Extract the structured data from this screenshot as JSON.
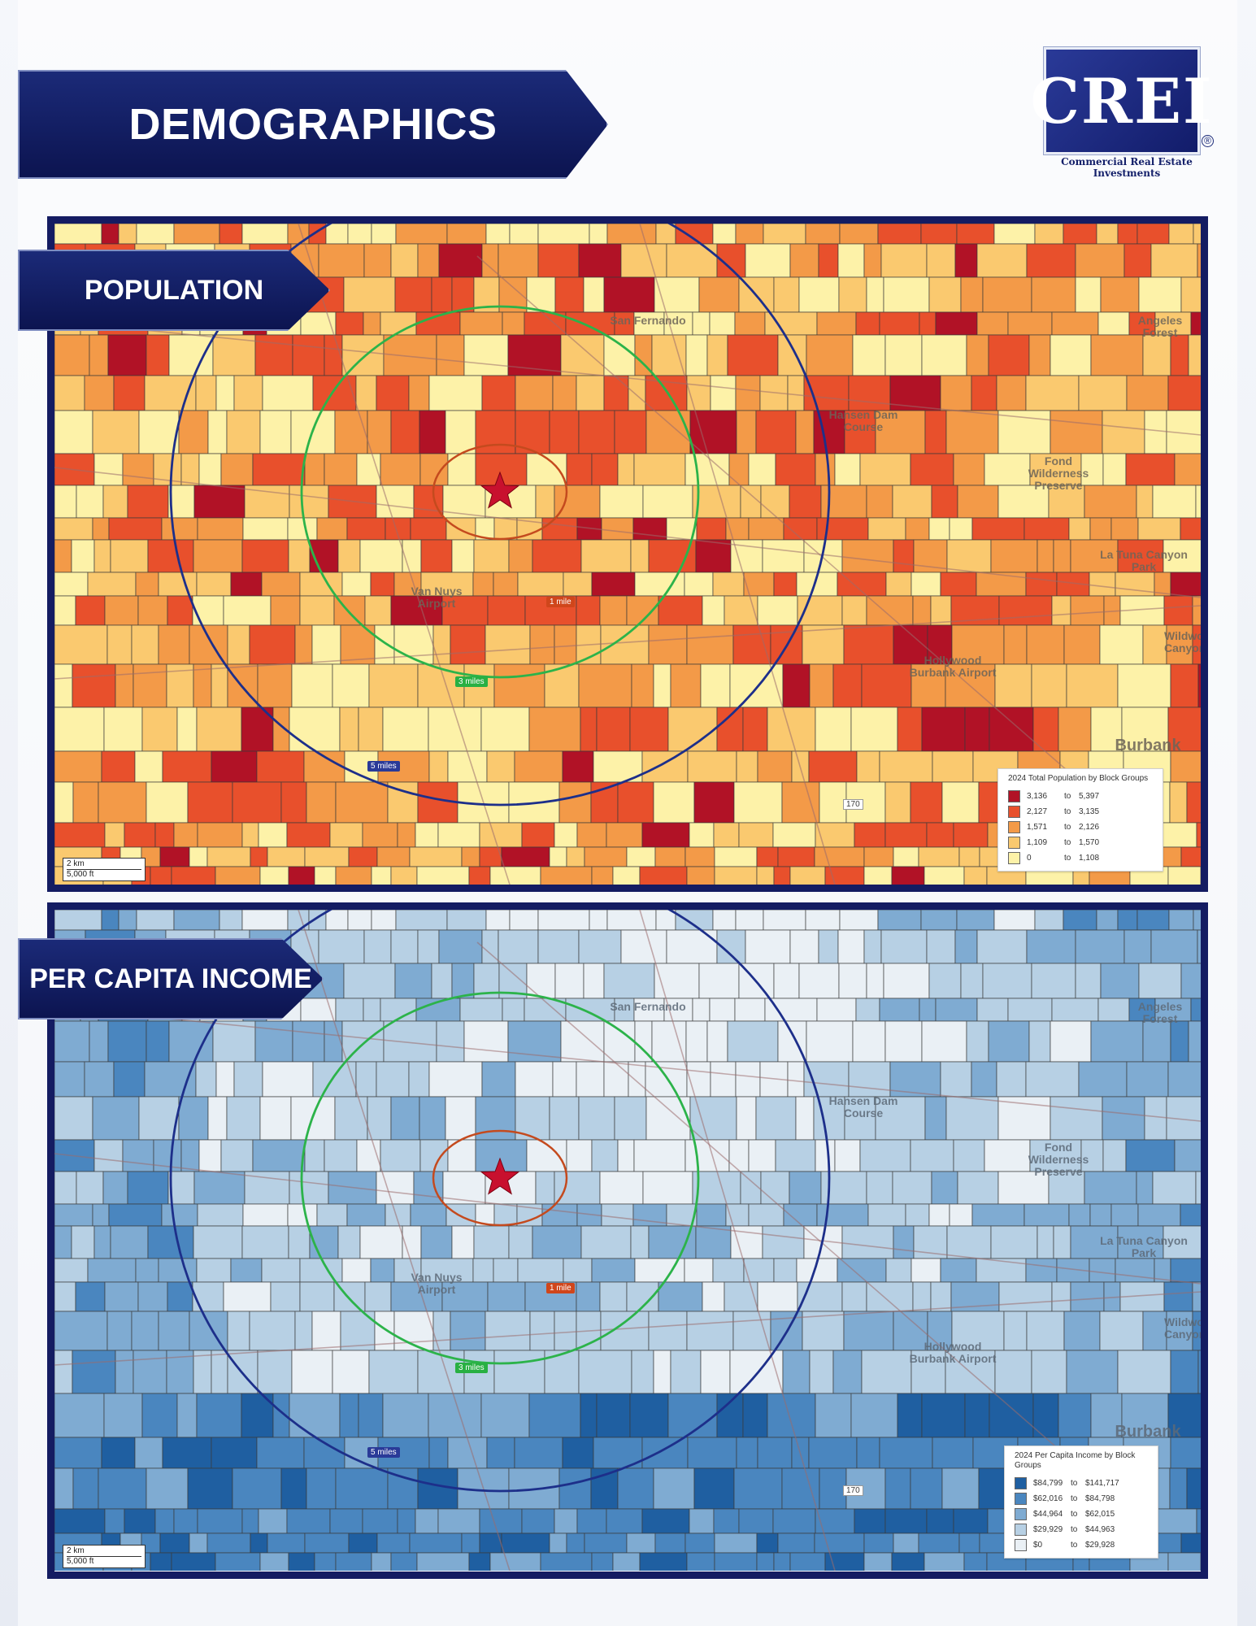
{
  "header": {
    "title": "DEMOGRAPHICS"
  },
  "logo": {
    "text": "CREI",
    "registered": "®",
    "tagline": "Commercial Real Estate Investments"
  },
  "rings": {
    "one": "1 mile",
    "three": "3 miles",
    "five": "5 miles"
  },
  "places": {
    "san_fernando": "San Fernando",
    "angeles_forest": "Angeles Forest",
    "fond_wilderness": "Fond Wilderness Preserve",
    "hansen_dam": "Hansen Dam Course",
    "la_tuna": "La Tuna Canyon Park",
    "van_nuys": "Van Nuys Airport",
    "hollywood_burbank": "Hollywood Burbank Airport",
    "burbank": "Burbank",
    "wildwood": "Wildwood Canyon"
  },
  "highway": "170",
  "scale": {
    "km": "2 km",
    "ft": "5,000 ft"
  },
  "population_map": {
    "label": "POPULATION",
    "legend": {
      "title": "2024 Total Population by Block Groups",
      "to": "to",
      "classes": [
        {
          "from": "3,136",
          "to": "5,397",
          "color": "#b11226"
        },
        {
          "from": "2,127",
          "to": "3,135",
          "color": "#e8502c"
        },
        {
          "from": "1,571",
          "to": "2,126",
          "color": "#f39a48"
        },
        {
          "from": "1,109",
          "to": "1,570",
          "color": "#fac96f"
        },
        {
          "from": "0",
          "to": "1,108",
          "color": "#fdf2a8"
        }
      ]
    }
  },
  "income_map": {
    "label": "PER CAPITA INCOME",
    "legend": {
      "title": "2024 Per Capita Income by Block Groups",
      "to": "to",
      "classes": [
        {
          "from": "$84,799",
          "to": "$141,717",
          "color": "#1f5fa1"
        },
        {
          "from": "$62,016",
          "to": "$84,798",
          "color": "#4a86bf"
        },
        {
          "from": "$44,964",
          "to": "$62,015",
          "color": "#7fabd2"
        },
        {
          "from": "$29,929",
          "to": "$44,963",
          "color": "#b7d0e4"
        },
        {
          "from": "$0",
          "to": "$29,928",
          "color": "#eaf0f5"
        }
      ]
    }
  }
}
